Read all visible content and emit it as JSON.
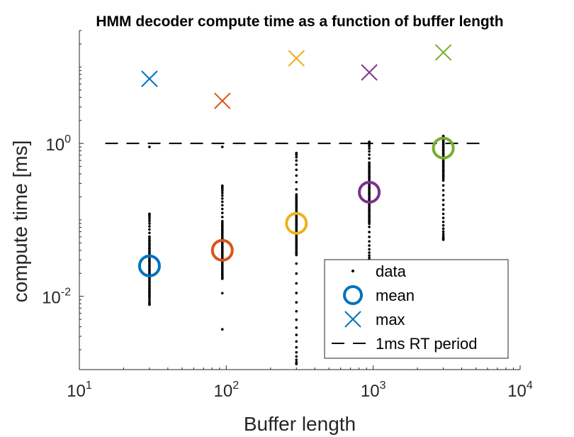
{
  "colors": {
    "blue": "#0072BD",
    "orange": "#D95319",
    "yellow": "#EDB120",
    "purple": "#7E2F8E",
    "green": "#77AC30",
    "data_points": "#000000",
    "rt_line": "#000000"
  },
  "chart_data": {
    "type": "scatter",
    "title": "HMM decoder compute time as a function of buffer length",
    "xlabel": "Buffer length",
    "ylabel": "compute time [ms]",
    "xscale": "log",
    "yscale": "log",
    "xlim": [
      10,
      10000
    ],
    "ylim": [
      0.0011,
      30
    ],
    "x_ticks": [
      {
        "base": "10",
        "exp": "1",
        "value": 10
      },
      {
        "base": "10",
        "exp": "2",
        "value": 100
      },
      {
        "base": "10",
        "exp": "3",
        "value": 1000
      },
      {
        "base": "10",
        "exp": "4",
        "value": 10000
      }
    ],
    "y_ticks": [
      {
        "base": "10",
        "exp": "-2",
        "value": 0.01
      },
      {
        "base": "10",
        "exp": "0",
        "value": 1
      }
    ],
    "grid": false,
    "legend": {
      "position": "bottom-right",
      "entries": [
        "data",
        "mean",
        "max",
        "1ms RT period"
      ]
    },
    "buffer_lengths": [
      30,
      94,
      300,
      940,
      3000
    ],
    "mean": [
      0.025,
      0.04,
      0.09,
      0.23,
      0.87
    ],
    "max": [
      7.0,
      3.6,
      13.0,
      8.5,
      15.5
    ],
    "data_ranges": [
      {
        "x": 30,
        "min": 0.0078,
        "max": 0.12,
        "outliers": [
          0.9
        ]
      },
      {
        "x": 94,
        "min": 0.017,
        "max": 0.28,
        "outliers": [
          0.011,
          0.0037,
          0.9
        ]
      },
      {
        "x": 300,
        "min": 0.0013,
        "max": 0.75,
        "outliers": []
      },
      {
        "x": 940,
        "min": 0.028,
        "max": 1.05,
        "outliers": []
      },
      {
        "x": 3000,
        "min": 0.055,
        "max": 1.25,
        "outliers": []
      }
    ],
    "reference_line": {
      "name": "1ms RT period",
      "y": 1,
      "x_range": [
        15,
        6000
      ]
    }
  }
}
